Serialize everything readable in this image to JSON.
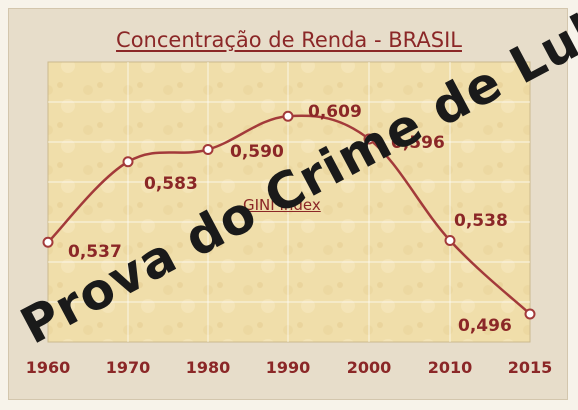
{
  "chart_data": {
    "type": "line",
    "title": "Concentração de Renda - BRASIL",
    "subtitle": "GINI Index",
    "categories": [
      "1960",
      "1970",
      "1980",
      "1990",
      "2000",
      "2010",
      "2015"
    ],
    "x": [
      1960,
      1970,
      1980,
      1990,
      2000,
      2010,
      2015
    ],
    "series": [
      {
        "values": [
          0.537,
          0.583,
          0.59,
          0.609,
          0.596,
          0.538,
          0.496
        ]
      }
    ],
    "data_labels": [
      "0,537",
      "0,583",
      "0,590",
      "0,609",
      "0,596",
      "0,538",
      "0,496"
    ],
    "ylim": [
      0.48,
      0.64
    ],
    "grid": true,
    "line_color": "#a33a3a",
    "marker_fill": "#ffffff"
  },
  "watermark": "Prova do Crime de Lula"
}
